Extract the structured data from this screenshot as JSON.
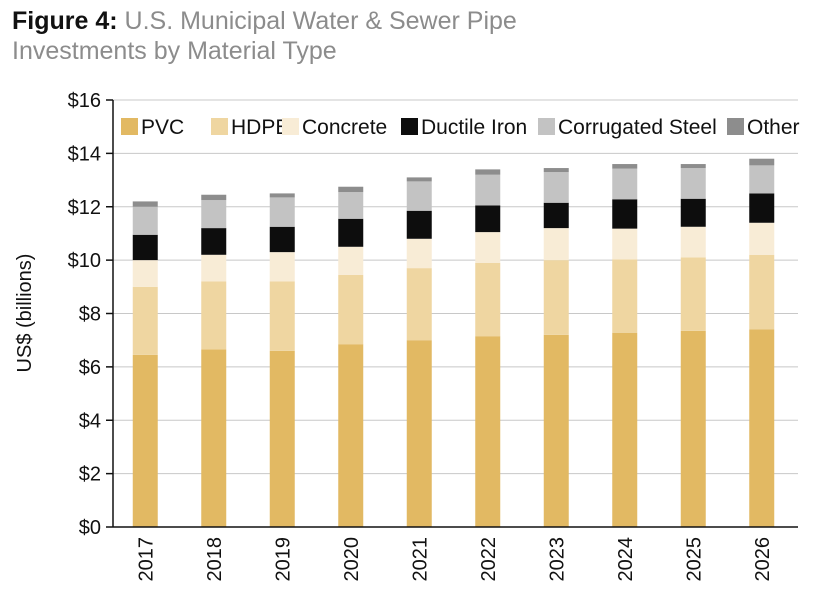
{
  "title": {
    "figure_label": "Figure 4:",
    "line1": "U.S. Municipal Water & Sewer Pipe",
    "line2": "Investments by Material Type"
  },
  "chart_data": {
    "type": "bar",
    "stacked": true,
    "title": "Figure 4: U.S. Municipal Water & Sewer Pipe Investments by Material Type",
    "xlabel": "",
    "ylabel": "US$ (billions)",
    "ylim": [
      0,
      16
    ],
    "yticks": [
      0,
      2,
      4,
      6,
      8,
      10,
      12,
      14,
      16
    ],
    "ytick_labels": [
      "$0",
      "$2",
      "$4",
      "$6",
      "$8",
      "$10",
      "$12",
      "$14",
      "$16"
    ],
    "grid": true,
    "legend_position": "top",
    "categories": [
      "2017",
      "2018",
      "2019",
      "2020",
      "2021",
      "2022",
      "2023",
      "2024",
      "2025",
      "2026"
    ],
    "series": [
      {
        "name": "PVC",
        "color": "#e2b963",
        "values": [
          6.45,
          6.65,
          6.6,
          6.85,
          7.0,
          7.15,
          7.2,
          7.28,
          7.35,
          7.4
        ]
      },
      {
        "name": "HDPE",
        "color": "#efd6a1",
        "values": [
          2.55,
          2.55,
          2.6,
          2.6,
          2.7,
          2.75,
          2.8,
          2.75,
          2.75,
          2.8
        ]
      },
      {
        "name": "Concrete",
        "color": "#f8ecd6",
        "values": [
          1.0,
          1.0,
          1.1,
          1.05,
          1.1,
          1.15,
          1.2,
          1.15,
          1.15,
          1.2
        ]
      },
      {
        "name": "Ductile Iron",
        "color": "#0d0d0d",
        "values": [
          0.95,
          1.0,
          0.95,
          1.05,
          1.05,
          1.0,
          0.95,
          1.1,
          1.05,
          1.1
        ]
      },
      {
        "name": "Corrugated Steel",
        "color": "#c3c3c3",
        "values": [
          1.05,
          1.05,
          1.1,
          1.0,
          1.1,
          1.15,
          1.15,
          1.15,
          1.15,
          1.05
        ]
      },
      {
        "name": "Other",
        "color": "#8d8d8d",
        "values": [
          0.2,
          0.2,
          0.15,
          0.2,
          0.15,
          0.2,
          0.15,
          0.17,
          0.15,
          0.25
        ]
      }
    ]
  }
}
